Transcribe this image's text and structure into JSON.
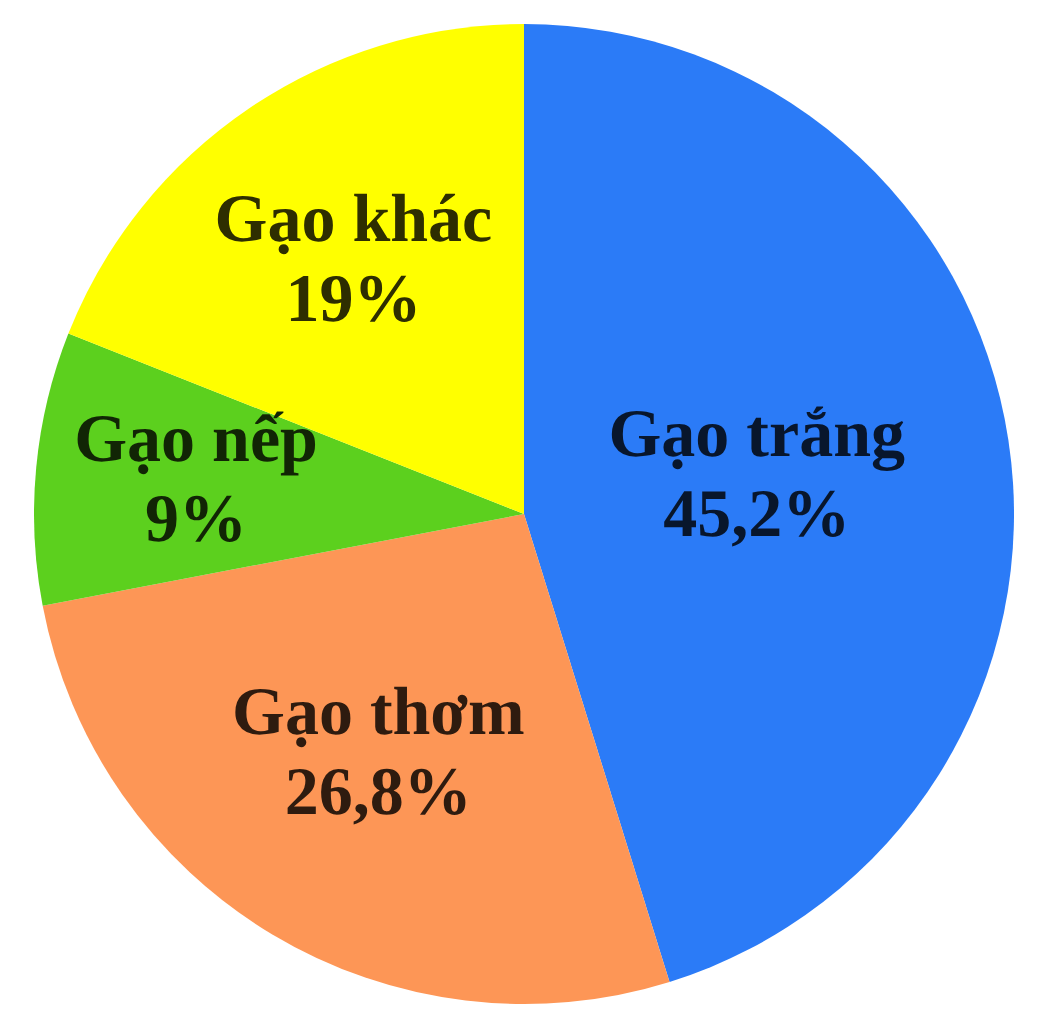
{
  "chart_data": {
    "type": "pie",
    "categories": [
      "Gạo trắng",
      "Gạo thơm",
      "Gạo nếp",
      "Gạo khác"
    ],
    "values": [
      45.2,
      26.8,
      9,
      19
    ],
    "value_labels": [
      "45,2%",
      "26,8%",
      "9%",
      "19%"
    ],
    "colors": [
      "#2b7bf7",
      "#fd9656",
      "#5cd01e",
      "#ffff00"
    ],
    "legend": false
  }
}
